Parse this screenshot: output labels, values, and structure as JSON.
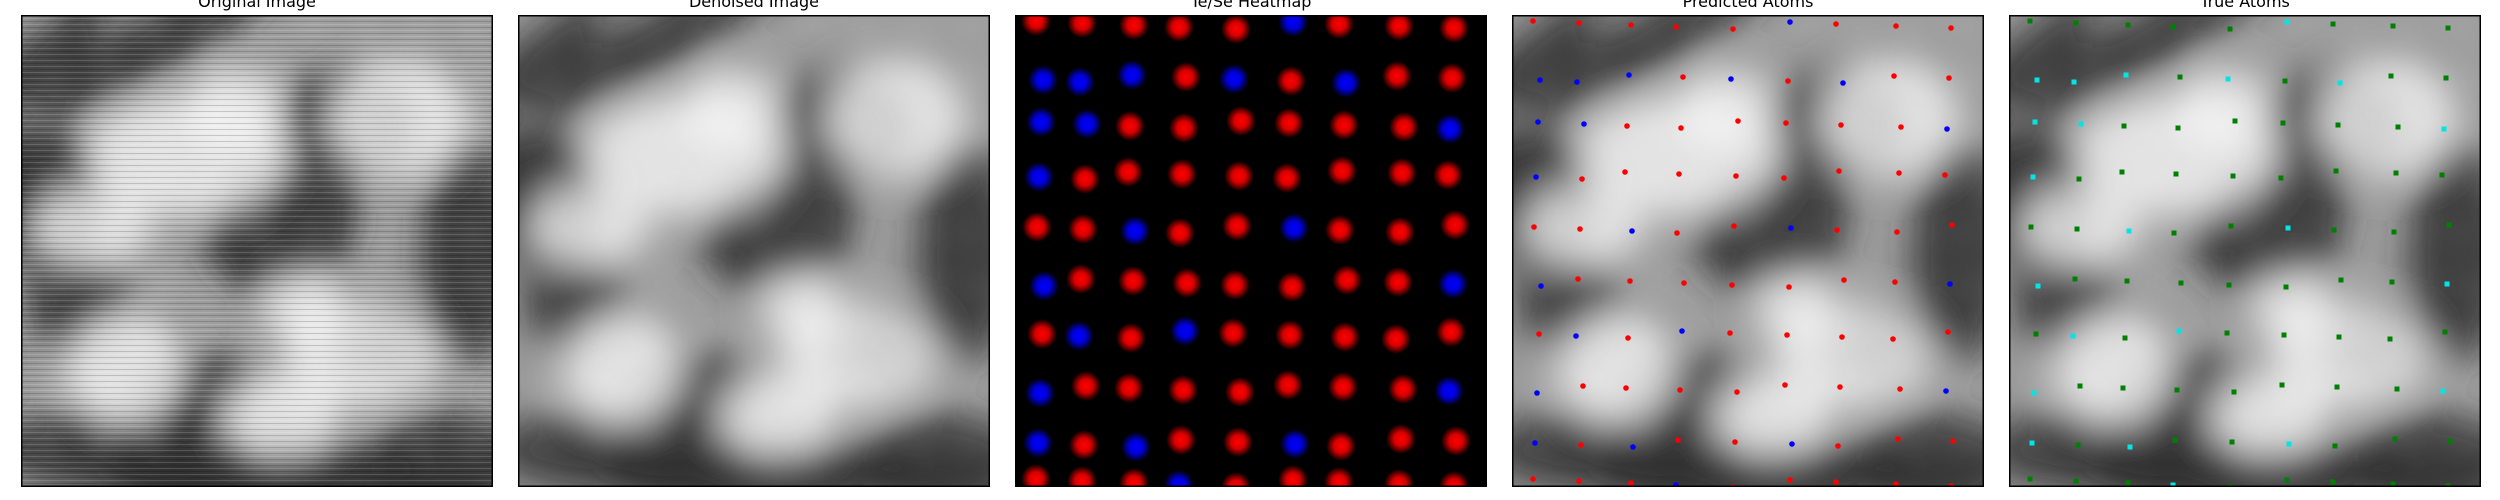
{
  "figure": {
    "panels": [
      {
        "title": "Original Image",
        "icon": "stem-image-icon",
        "type": "noisy-grayscale"
      },
      {
        "title": "Denoised Image",
        "icon": "denoised-image-icon",
        "type": "denoised-grayscale"
      },
      {
        "title": "Te/Se Heatmap",
        "icon": "heatmap-icon",
        "type": "heatmap"
      },
      {
        "title": "Predicted Atoms",
        "icon": "predicted-atoms-icon",
        "type": "predicted-atoms"
      },
      {
        "title": "True Atoms",
        "icon": "true-atoms-icon",
        "type": "true-atoms"
      }
    ]
  },
  "colors": {
    "te": "#ff0000",
    "se": "#0000ff",
    "true_te": "#008000",
    "true_se": "#00e5e5",
    "heatmap_bg": "#000000"
  }
}
